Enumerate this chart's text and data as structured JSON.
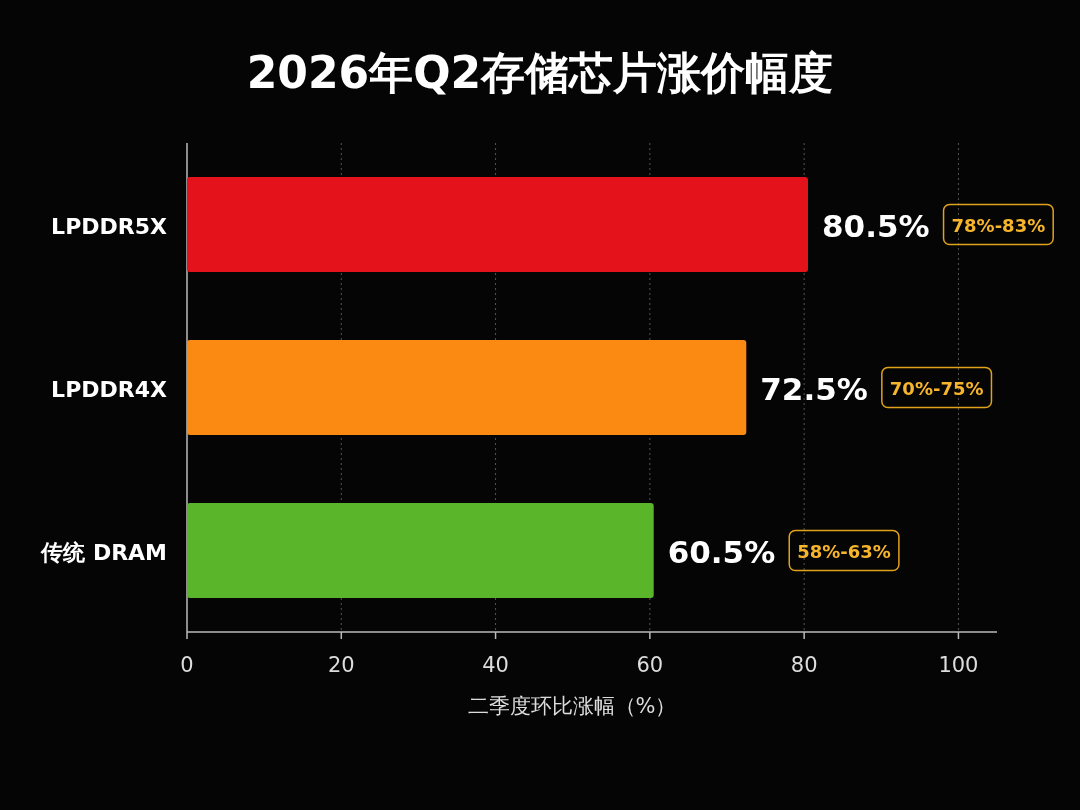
{
  "chart_data": {
    "type": "bar",
    "orientation": "horizontal",
    "title": "2026年Q2存储芯片涨价幅度",
    "xlabel": "二季度环比涨幅（%）",
    "categories": [
      "LPDDR5X",
      "LPDDR4X",
      "传统 DRAM"
    ],
    "values": [
      80.5,
      72.5,
      60.5
    ],
    "colors": [
      "#e3121b",
      "#fb8a12",
      "#5bb52a"
    ],
    "value_labels": [
      "80.5%",
      "72.5%",
      "60.5%"
    ],
    "xlim": [
      0,
      105
    ],
    "xticks": [
      0,
      20,
      40,
      60,
      80,
      100
    ],
    "grid": "x",
    "annotations": [
      "78%-83%",
      "70%-75%",
      "58%-63%"
    ]
  }
}
